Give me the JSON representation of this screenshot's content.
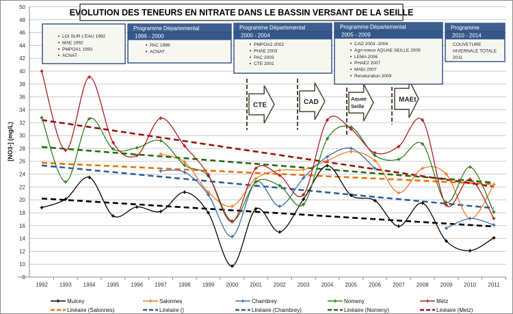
{
  "chart_data": {
    "type": "line",
    "title": "EVOLUTION DES TENEURS EN NITRATE DANS LE BASSIN VERSANT DE LA SEILLE",
    "xlabel": "",
    "ylabel": "[NO3-] (mg/L)",
    "ylim": [
      8,
      50
    ],
    "yticks": [
      8,
      10,
      12,
      14,
      16,
      18,
      20,
      22,
      24,
      26,
      28,
      30,
      32,
      34,
      36,
      38,
      40,
      42,
      44,
      46,
      48,
      50
    ],
    "grid": true,
    "legend_position": "bottom",
    "categories": [
      "1992",
      "1993",
      "1994",
      "1995",
      "1996",
      "1997",
      "1998",
      "1999",
      "2000",
      "2001",
      "2002",
      "2003",
      "2004",
      "2005",
      "2006",
      "2007",
      "2008",
      "2009",
      "2010",
      "2011"
    ],
    "series": [
      {
        "name": "Mulcey",
        "color": "#000000",
        "trend_color": "#000000",
        "values": [
          18.8,
          20.1,
          23.5,
          17.5,
          18.9,
          18.2,
          21.2,
          18.0,
          9.7,
          18.6,
          15.0,
          20.1,
          25.3,
          20.7,
          19.9,
          15.9,
          19.5,
          13.6,
          12.1,
          14.1
        ]
      },
      {
        "name": "Salonnes",
        "color": "#f07820",
        "trend_color": "#e8700a",
        "values": [
          null,
          null,
          null,
          null,
          null,
          27.1,
          25.9,
          21.2,
          19.0,
          23.3,
          24.6,
          24.7,
          26.1,
          27.5,
          26.1,
          21.1,
          24.9,
          24.0,
          17.1,
          22.4
        ]
      },
      {
        "name": "Chambrey",
        "color": "#3a6ea5",
        "trend_color": "#2e5c9a",
        "values": [
          null,
          null,
          null,
          null,
          null,
          24.5,
          24.3,
          20.8,
          14.3,
          22.8,
          19.0,
          23.4,
          26.7,
          28.0,
          24.9,
          null,
          null,
          15.6,
          17.1,
          16.1
        ]
      },
      {
        "name": "Nomeny",
        "color": "#2e7d1a",
        "trend_color": "#1f6b0f",
        "values": [
          32.8,
          22.8,
          32.6,
          27.9,
          28.1,
          29.2,
          25.4,
          23.7,
          16.7,
          22.8,
          22.2,
          19.3,
          29.5,
          31.3,
          26.9,
          26.3,
          28.7,
          19.6,
          25.1,
          18.1
        ]
      },
      {
        "name": "Metz",
        "color": "#b01c1c",
        "trend_color": "#9a0f0f",
        "values": [
          40.0,
          27.7,
          39.1,
          28.9,
          26.9,
          32.7,
          28.4,
          23.9,
          16.6,
          24.9,
          23.8,
          20.8,
          32.4,
          31.0,
          27.3,
          28.3,
          32.4,
          19.2,
          23.2,
          17.1
        ]
      }
    ],
    "legend": [
      {
        "label": "Mulcey",
        "style": "line",
        "color": "#000000"
      },
      {
        "label": "Salonnes",
        "style": "line",
        "color": "#f07820"
      },
      {
        "label": "Chambrey",
        "style": "line",
        "color": "#3a6ea5"
      },
      {
        "label": "Nomeny",
        "style": "line",
        "color": "#2e7d1a"
      },
      {
        "label": "Metz",
        "style": "line",
        "color": "#b01c1c"
      },
      {
        "label": "Linéaire (Salonnes)",
        "style": "dash",
        "color": "#e8700a"
      },
      {
        "label": "Linéaire ()",
        "style": "dash",
        "color": "#2e5c9a"
      },
      {
        "label": "Linéaire (Chambrey)",
        "style": "dash",
        "color": "#2e5c9a"
      },
      {
        "label": "Linéaire (Nomeny)",
        "style": "dash",
        "color": "#1f6b0f"
      },
      {
        "label": "Linéaire (Metz)",
        "style": "dash",
        "color": "#9a0f0f"
      }
    ]
  },
  "programmes": [
    {
      "header": "",
      "period": "",
      "items": [
        "LOI SUR L'EAU 1992",
        "MAE 1992",
        "PMPOA1 1993",
        "ACNAT"
      ]
    },
    {
      "header": "Programme Départemental",
      "period": "1996 - 2000",
      "items": [
        "PAC 1999",
        "ACNAT"
      ]
    },
    {
      "header": "Programme Départemental",
      "period": "2000 - 2004",
      "items": [
        "PMPOA2 2002",
        "PHAE 2003",
        "PAC 2003",
        "CTE 2001"
      ]
    },
    {
      "header": "Programme Départemental",
      "period": "2005 - 2009",
      "items": [
        "CAD 2003 -2004",
        "Agri-mieux AQUAE SEILLE 2005",
        "LEMA 2006",
        "PHAE2 2007",
        "MAEt 2007",
        "Renaturation 2009"
      ]
    },
    {
      "header": "Programme",
      "period": "2010 - 2014",
      "items": [
        "COUVETURE",
        "HIVERNALE TOTALE",
        "2011"
      ]
    }
  ],
  "arrows": [
    {
      "lines": [
        "CTE"
      ]
    },
    {
      "lines": [
        "CAD"
      ]
    },
    {
      "lines": [
        "Aquae",
        "Seille"
      ]
    },
    {
      "lines": [
        "MAEt"
      ]
    }
  ],
  "colors": {
    "header_bg": "#3d5f8f",
    "box_border": "#2a4a80",
    "box_bg": "#f7f7f2",
    "grid": "#c8c8c8"
  }
}
